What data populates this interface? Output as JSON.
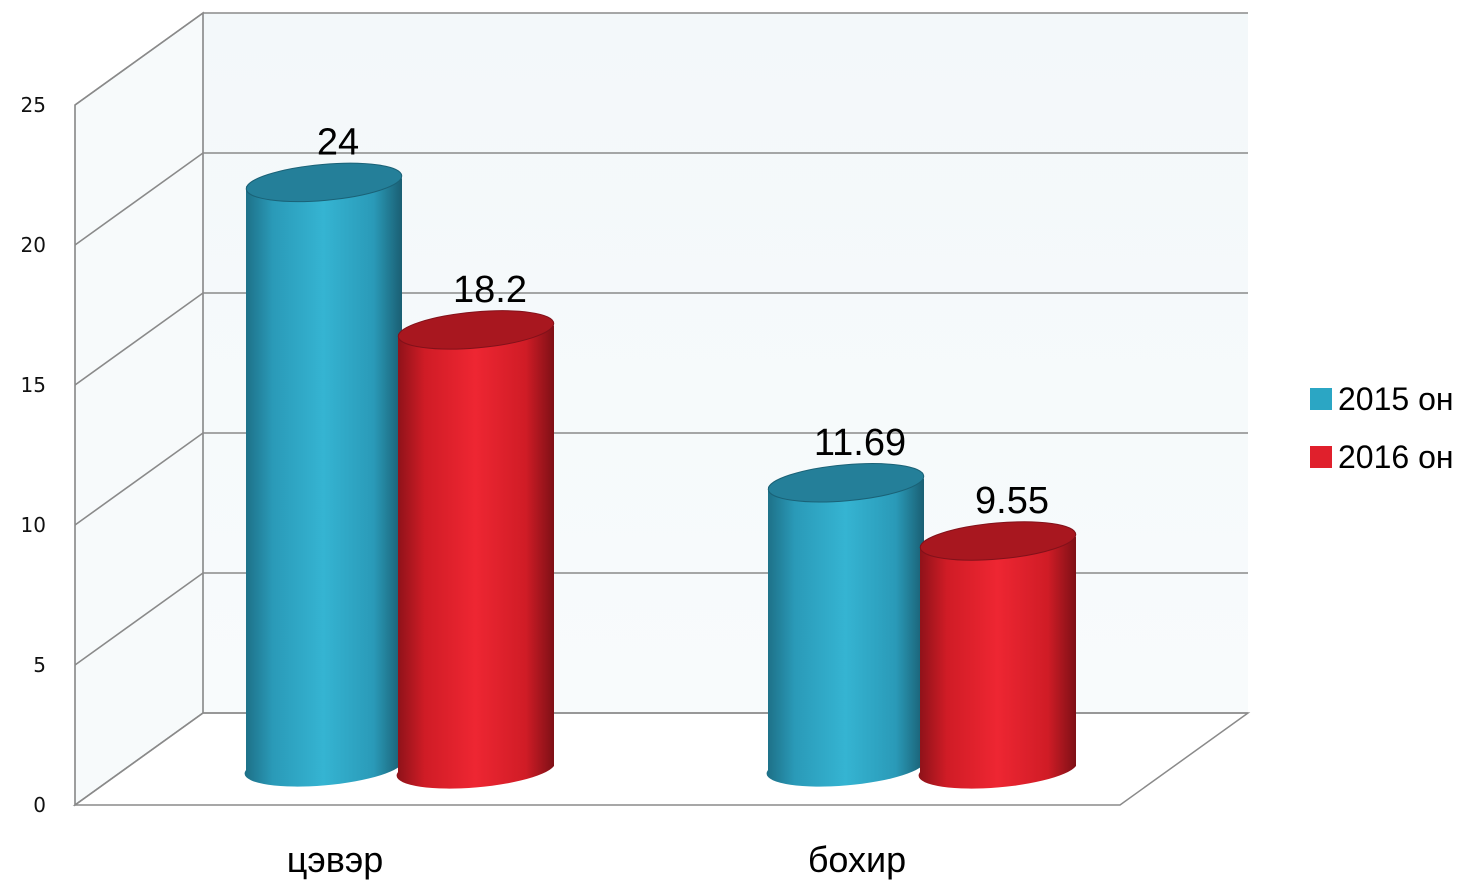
{
  "chart_data": {
    "type": "bar",
    "title": "",
    "xlabel": "",
    "ylabel": "",
    "categories": [
      "цэвэр",
      "бохир"
    ],
    "series": [
      {
        "name": "2015 он",
        "values": [
          24,
          11.69
        ],
        "color": "#2ba6c4"
      },
      {
        "name": "2016 он",
        "values": [
          18.2,
          9.55
        ],
        "color": "#e0202c"
      }
    ],
    "data_labels": [
      [
        "24",
        "11.69"
      ],
      [
        "18.2",
        "9.55"
      ]
    ],
    "ylim": [
      0,
      25
    ],
    "yticks": [
      0,
      5,
      10,
      15,
      20,
      25
    ],
    "grid": true,
    "legend_position": "right",
    "style": "3d-cylinder"
  }
}
